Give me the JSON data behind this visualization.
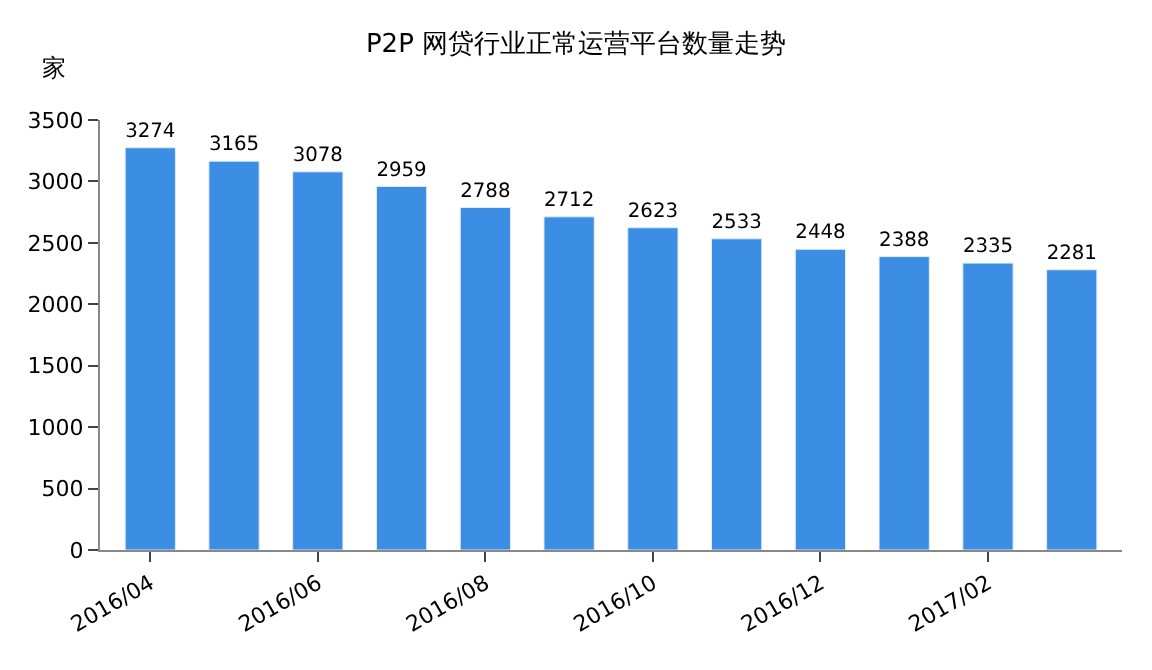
{
  "chart_data": {
    "type": "bar",
    "title": "P2P 网贷行业正常运营平台数量走势",
    "ylabel": "家",
    "categories": [
      "2016/04",
      null,
      "2016/06",
      null,
      "2016/08",
      null,
      "2016/10",
      null,
      "2016/12",
      null,
      "2017/02",
      null
    ],
    "values": [
      3274,
      3165,
      3078,
      2959,
      2788,
      2712,
      2623,
      2533,
      2448,
      2388,
      2335,
      2281
    ],
    "color": "#3b8ee3",
    "ylim": [
      0,
      3500
    ],
    "yticks": [
      0,
      500,
      1000,
      1500,
      2000,
      2500,
      3000,
      3500
    ],
    "data_labels": true
  }
}
